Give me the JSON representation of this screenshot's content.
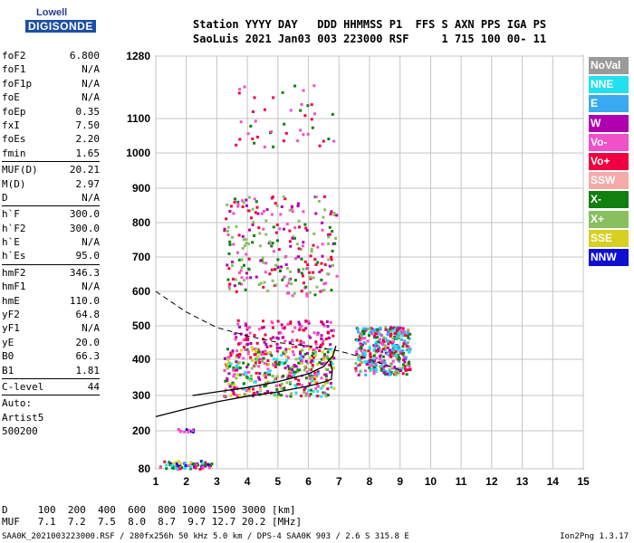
{
  "logo": {
    "line1": "Lowell",
    "line2": "DIGISONDE"
  },
  "header": {
    "line1": "Station YYYY DAY   DDD HHMMSS P1  FFS S AXN PPS IGA PS",
    "line2": "SaoLuis 2021 Jan03 003 223000 RSF     1 715 100 00- 11"
  },
  "params": [
    [
      {
        "k": "foF2",
        "v": "6.800"
      },
      {
        "k": "foF1",
        "v": "N/A"
      },
      {
        "k": "foF1p",
        "v": "N/A"
      },
      {
        "k": "foE",
        "v": "N/A"
      },
      {
        "k": "foEp",
        "v": "0.35"
      },
      {
        "k": "fxI",
        "v": "7.50"
      },
      {
        "k": "foEs",
        "v": "2.20"
      },
      {
        "k": "fmin",
        "v": "1.65"
      }
    ],
    [
      {
        "k": "MUF(D)",
        "v": "20.21"
      },
      {
        "k": "M(D)",
        "v": "2.97"
      },
      {
        "k": "D",
        "v": "N/A"
      }
    ],
    [
      {
        "k": "h`F",
        "v": "300.0"
      },
      {
        "k": "h`F2",
        "v": "300.0"
      },
      {
        "k": "h`E",
        "v": "N/A"
      },
      {
        "k": "h`Es",
        "v": "95.0"
      }
    ],
    [
      {
        "k": "hmF2",
        "v": "346.3"
      },
      {
        "k": "hmF1",
        "v": "N/A"
      },
      {
        "k": "hmE",
        "v": "110.0"
      },
      {
        "k": "yF2",
        "v": "64.8"
      },
      {
        "k": "yF1",
        "v": "N/A"
      },
      {
        "k": "yE",
        "v": "20.0"
      },
      {
        "k": "B0",
        "v": "66.3"
      },
      {
        "k": "B1",
        "v": "1.81"
      }
    ],
    [
      {
        "k": "C-level",
        "v": "44"
      }
    ],
    [
      {
        "k": "Auto:",
        "v": ""
      },
      {
        "k": "Artist5",
        "v": ""
      },
      {
        "k": "500200",
        "v": ""
      }
    ]
  ],
  "legend": [
    {
      "label": "NoVal",
      "color": "#9a9a9a"
    },
    {
      "label": "NNE",
      "color": "#22e0f0"
    },
    {
      "label": "E",
      "color": "#3aaaf0"
    },
    {
      "label": "W",
      "color": "#b000b0"
    },
    {
      "label": "Vo-",
      "color": "#f050c8"
    },
    {
      "label": "Vo+",
      "color": "#f00040"
    },
    {
      "label": "SSW",
      "color": "#f5aaaa"
    },
    {
      "label": "X-",
      "color": "#108010"
    },
    {
      "label": "X+",
      "color": "#88c060"
    },
    {
      "label": "SSE",
      "color": "#d8d020"
    },
    {
      "label": "NNW",
      "color": "#1010d0"
    }
  ],
  "chart_data": {
    "type": "scatter",
    "title": "",
    "xlabel": "",
    "ylabel": "",
    "xlim": [
      1,
      15
    ],
    "ylim": [
      80,
      1280
    ],
    "x_ticks": [
      1,
      2,
      3,
      4,
      5,
      6,
      7,
      8,
      9,
      10,
      11,
      12,
      13,
      14,
      15
    ],
    "y_ticks": [
      80,
      200,
      300,
      400,
      500,
      600,
      700,
      800,
      900,
      1000,
      1100,
      1280
    ],
    "grid": true,
    "clusters": [
      {
        "name": "Es",
        "x": [
          1.1,
          2.8
        ],
        "y": [
          82,
          108
        ],
        "n": 70,
        "colors": [
          "#f00040",
          "#d8d020",
          "#1010d0",
          "#f050c8",
          "#108010",
          "#22e0f0"
        ]
      },
      {
        "name": "cyan-dots",
        "x": [
          1.5,
          2.2
        ],
        "y": [
          200,
          208
        ],
        "n": 12,
        "colors": [
          "#1010d0",
          "#f050c8"
        ]
      },
      {
        "name": "F-band",
        "x": [
          3.2,
          6.8
        ],
        "y": [
          300,
          440
        ],
        "n": 420,
        "colors": [
          "#f00040",
          "#f050c8",
          "#b000b0",
          "#108010",
          "#22e0f0",
          "#d8d020",
          "#88c060"
        ]
      },
      {
        "name": "F-upper",
        "x": [
          3.5,
          6.8
        ],
        "y": [
          440,
          520
        ],
        "n": 120,
        "colors": [
          "#b000b0",
          "#f050c8",
          "#f00040"
        ]
      },
      {
        "name": "O-extra",
        "x": [
          7.5,
          9.3
        ],
        "y": [
          360,
          500
        ],
        "n": 380,
        "colors": [
          "#3aaaf0",
          "#b000b0",
          "#f050c8",
          "#f00040",
          "#88c060",
          "#108010",
          "#22e0f0"
        ]
      },
      {
        "name": "2F",
        "x": [
          3.2,
          6.9
        ],
        "y": [
          590,
          880
        ],
        "n": 260,
        "colors": [
          "#f00040",
          "#f050c8",
          "#108010",
          "#b000b0",
          "#88c060"
        ]
      },
      {
        "name": "3F",
        "x": [
          3.5,
          6.8
        ],
        "y": [
          1020,
          1200
        ],
        "n": 45,
        "colors": [
          "#f050c8",
          "#f00040",
          "#108010"
        ]
      }
    ],
    "lines": {
      "profile": [
        [
          1,
          240
        ],
        [
          2,
          262
        ],
        [
          3,
          282
        ],
        [
          4,
          298
        ],
        [
          5,
          310
        ],
        [
          6,
          326
        ],
        [
          6.55,
          338
        ],
        [
          6.75,
          345
        ],
        [
          6.78,
          370
        ],
        [
          6.7,
          395
        ]
      ],
      "trace": [
        [
          2.2,
          300
        ],
        [
          3,
          310
        ],
        [
          4,
          322
        ],
        [
          5,
          338
        ],
        [
          6,
          360
        ],
        [
          6.5,
          380
        ],
        [
          6.8,
          410
        ],
        [
          6.9,
          440
        ]
      ],
      "dashed": [
        [
          1,
          600
        ],
        [
          2,
          540
        ],
        [
          3,
          495
        ],
        [
          4,
          470
        ],
        [
          5,
          450
        ],
        [
          6,
          440
        ],
        [
          7,
          425
        ],
        [
          8,
          400
        ],
        [
          9,
          370
        ]
      ]
    }
  },
  "bottom": {
    "line1": "D     100  200  400  600  800 1000 1500 3000 [km]",
    "line2": "MUF   7.1  7.2  7.5  8.0  8.7  9.7 12.7 20.2 [MHz]",
    "footer": "SAA0K_2021003223000.RSF / 280fx256h 50 kHz 5.0 km / DPS-4 SAA0K 903 / 2.6 S 315.8 E",
    "version": "Ion2Png 1.3.17"
  }
}
